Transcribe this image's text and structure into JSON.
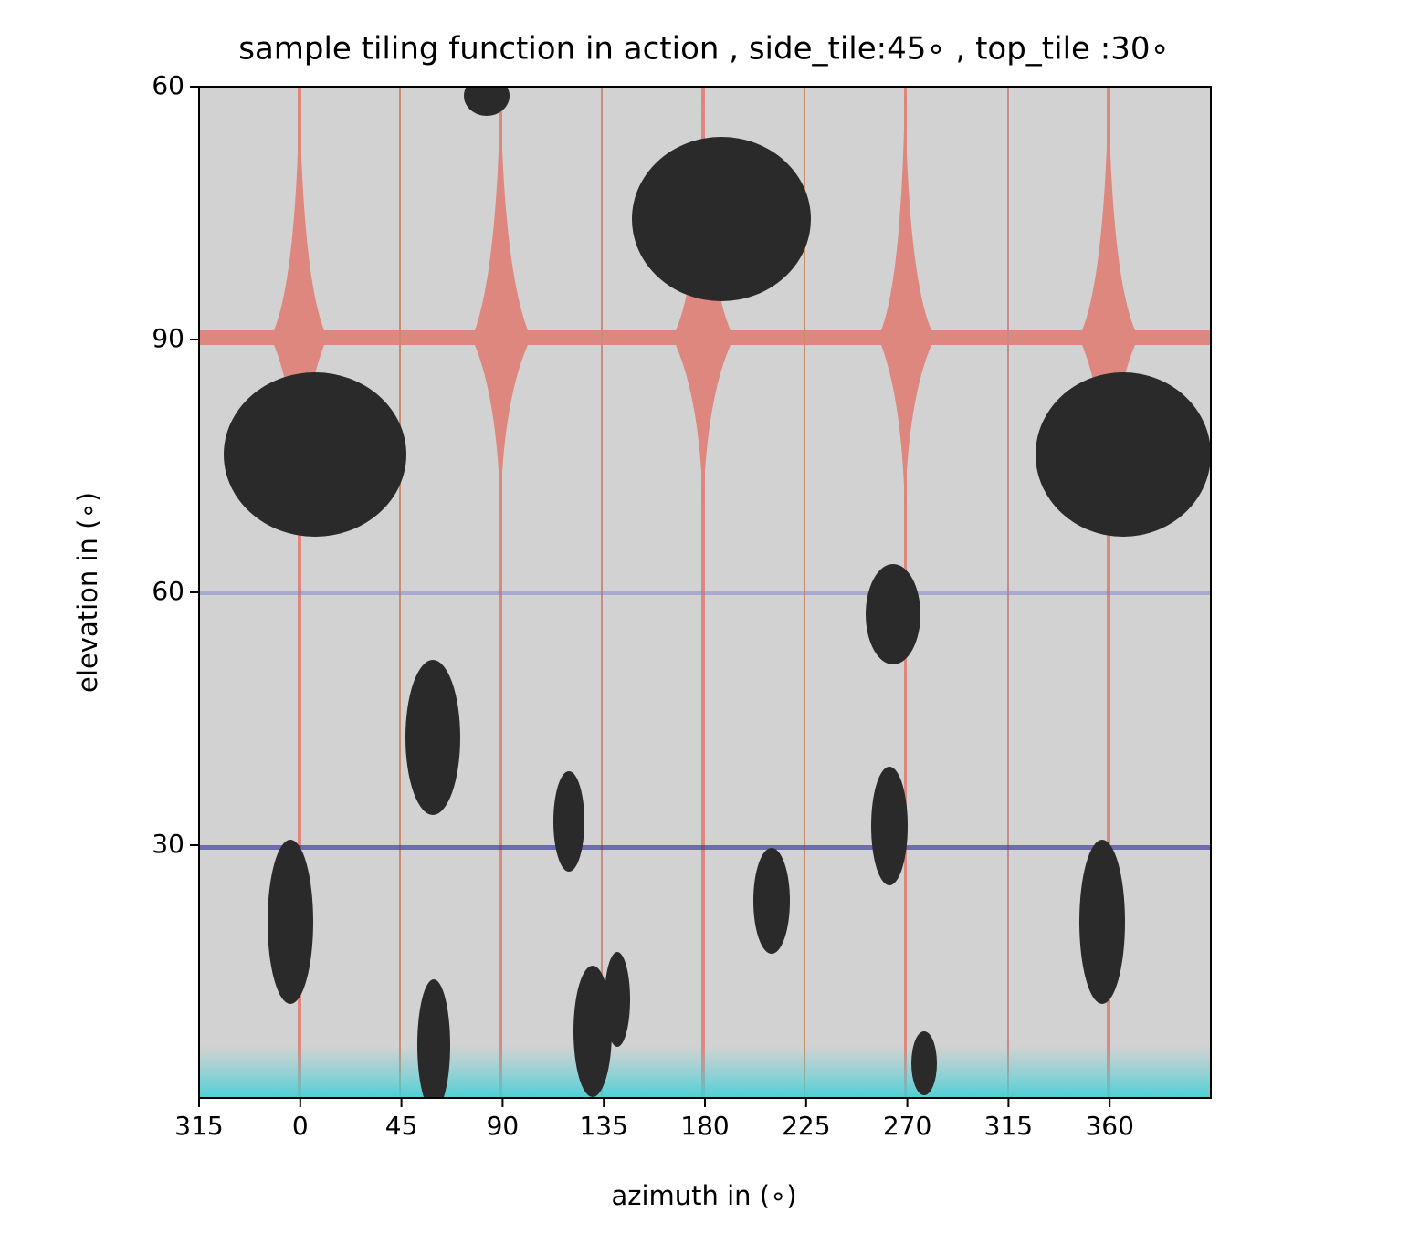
{
  "chart_data": {
    "type": "image",
    "title": "sample tiling function in action , side_tile:45∘ , top_tile :30∘",
    "x_label": "azimuth in (∘)",
    "y_label": "elevation in (∘)",
    "xlim": [
      -45,
      405
    ],
    "ylim": [
      0,
      120
    ],
    "xticks": [
      {
        "value": -45,
        "label": "315"
      },
      0,
      45,
      90,
      135,
      180,
      225,
      270,
      315,
      360
    ],
    "yticks": [
      30,
      60,
      90,
      {
        "value": 120,
        "label": "60"
      }
    ],
    "grid": false
  }
}
